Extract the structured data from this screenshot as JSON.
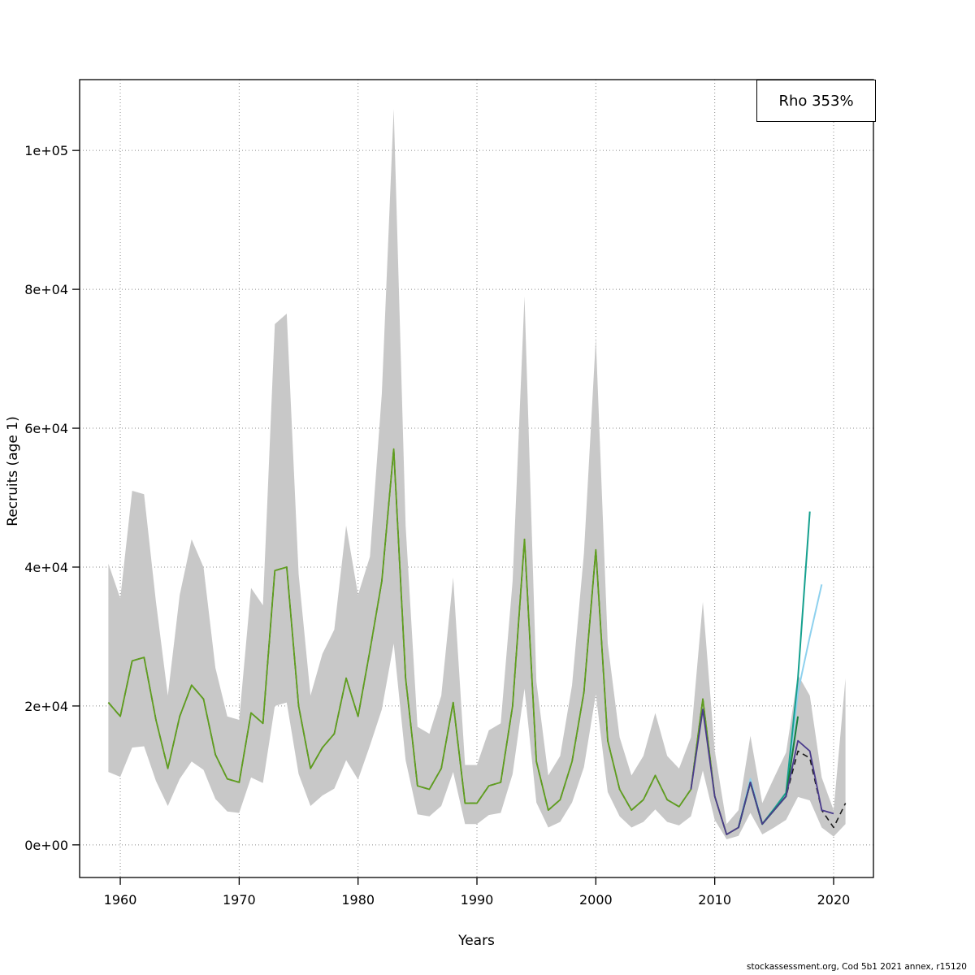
{
  "chart_data": {
    "type": "line",
    "title": "",
    "xlabel": "Years",
    "ylabel": "Recruits (age 1)",
    "legend_label": "Rho 353%",
    "footer": "stockassessment.org, Cod 5b1 2021 annex, r15120",
    "grid": true,
    "legend_position": "top-right",
    "xlim": [
      1956.58,
      2023.35
    ],
    "ylim": [
      -4700,
      110200
    ],
    "x_ticks": [
      1960,
      1970,
      1980,
      1990,
      2000,
      2010,
      2020
    ],
    "y_ticks": [
      0,
      20000,
      40000,
      60000,
      80000,
      100000
    ],
    "y_tick_labels": [
      "0e+00",
      "2e+04",
      "4e+04",
      "6e+04",
      "8e+04",
      "1e+05"
    ],
    "band": {
      "name": "confidence-band",
      "color": "#c8c8c8",
      "start_year": 1959,
      "low": [
        10500,
        9800,
        14000,
        14200,
        9200,
        5600,
        9500,
        12000,
        10800,
        6600,
        4800,
        4600,
        9700,
        8900,
        20000,
        20500,
        10200,
        5600,
        7100,
        8100,
        12200,
        9400,
        14300,
        19500,
        29000,
        12200,
        4400,
        4100,
        5600,
        10500,
        3000,
        3000,
        4300,
        4600,
        10200,
        22500,
        6100,
        2500,
        3300,
        6100,
        11200,
        21700,
        7600,
        4100,
        2500,
        3300,
        5100,
        3300,
        2800,
        4100,
        10700,
        3600,
        800,
        1300,
        4600,
        1500,
        2500,
        3600,
        6900,
        6400,
        2500,
        1200,
        3000
      ],
      "high": [
        40500,
        35500,
        51000,
        50500,
        35000,
        21500,
        36000,
        44000,
        40000,
        25500,
        18500,
        18000,
        37000,
        34500,
        75000,
        76500,
        39000,
        21500,
        27500,
        31000,
        46000,
        36000,
        41500,
        65000,
        106000,
        46000,
        17000,
        16000,
        21500,
        38500,
        11500,
        11500,
        16500,
        17500,
        38000,
        79000,
        23500,
        10000,
        12800,
        23000,
        42000,
        73000,
        29000,
        15500,
        10000,
        12800,
        19000,
        12800,
        11000,
        15500,
        35000,
        13600,
        3000,
        5000,
        15700,
        6000,
        9700,
        13300,
        24500,
        21500,
        9700,
        5000,
        24000
      ]
    },
    "series": [
      {
        "name": "base-run",
        "color": "#1a1a1a",
        "dash": "7,5",
        "width": 1.6,
        "start_year": 1959,
        "values": [
          20500,
          18500,
          26500,
          27000,
          18000,
          11000,
          18500,
          23000,
          21000,
          13000,
          9500,
          9000,
          19000,
          17500,
          39500,
          40000,
          20000,
          11000,
          14000,
          16000,
          24000,
          18500,
          28000,
          38000,
          57000,
          24000,
          8500,
          8000,
          11000,
          20500,
          6000,
          6000,
          8500,
          9000,
          20000,
          44000,
          12000,
          5000,
          6500,
          12000,
          22000,
          42500,
          15000,
          8000,
          5000,
          6500,
          10000,
          6500,
          5500,
          8000,
          21000,
          7000,
          1500,
          2500,
          9000,
          3000,
          5000,
          7000,
          13500,
          12500,
          5000,
          2500,
          6000
        ]
      },
      {
        "name": "final-run",
        "color": "#5f9e1e",
        "dash": null,
        "width": 1.8,
        "start_year": 1959,
        "values": [
          20500,
          18500,
          26500,
          27000,
          18000,
          11000,
          18500,
          23000,
          21000,
          13000,
          9500,
          9000,
          19000,
          17500,
          39500,
          40000,
          20000,
          11000,
          14000,
          16000,
          24000,
          18500,
          28000,
          38000,
          57000,
          24000,
          8500,
          8000,
          11000,
          20500,
          6000,
          6000,
          8500,
          9000,
          20000,
          44000,
          12000,
          5000,
          6500,
          12000,
          22000,
          42500,
          15000,
          8000,
          5000,
          6500,
          10000,
          6500,
          5500,
          8000,
          21000,
          7000,
          1500,
          2500,
          9000,
          3000,
          5000,
          7000
        ]
      },
      {
        "name": "peel-2019",
        "color": "#8ed1ee",
        "dash": null,
        "width": 2,
        "start_year": 2012,
        "values": [
          2500,
          9500,
          3000,
          5000,
          7000,
          22000,
          30000,
          37500
        ]
      },
      {
        "name": "peel-2018",
        "color": "#15a08e",
        "dash": null,
        "width": 2,
        "start_year": 2012,
        "values": [
          2500,
          9000,
          3000,
          5200,
          7500,
          24000,
          48000
        ]
      },
      {
        "name": "peel-2017",
        "color": "#157f3d",
        "dash": null,
        "width": 2,
        "start_year": 2012,
        "values": [
          2500,
          9000,
          3000,
          5000,
          7000,
          18500
        ]
      },
      {
        "name": "peel-2020",
        "color": "#4a3b8c",
        "dash": null,
        "width": 1.8,
        "start_year": 2008,
        "values": [
          8000,
          19500,
          7000,
          1500,
          2500,
          9000,
          3000,
          5000,
          7000,
          15000,
          13500,
          5000,
          4500
        ]
      }
    ]
  }
}
